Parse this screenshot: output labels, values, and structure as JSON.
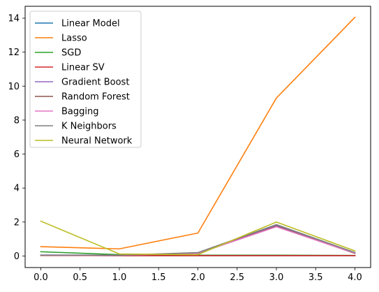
{
  "chart_data": {
    "type": "line",
    "title": "",
    "xlabel": "",
    "ylabel": "",
    "x": [
      0,
      1,
      2,
      3,
      4
    ],
    "xlim": [
      -0.2,
      4.2
    ],
    "ylim": [
      -0.68,
      14.7
    ],
    "xticks": [
      0.0,
      0.5,
      1.0,
      1.5,
      2.0,
      2.5,
      3.0,
      3.5,
      4.0
    ],
    "xtick_labels": [
      "0.0",
      "0.5",
      "1.0",
      "1.5",
      "2.0",
      "2.5",
      "3.0",
      "3.5",
      "4.0"
    ],
    "yticks": [
      0,
      2,
      4,
      6,
      8,
      10,
      12,
      14
    ],
    "ytick_labels": [
      "0",
      "2",
      "4",
      "6",
      "8",
      "10",
      "12",
      "14"
    ],
    "grid": false,
    "legend_position": "top-left",
    "series": [
      {
        "name": "Linear Model",
        "color": "#1f77b4",
        "values": [
          0.05,
          0.02,
          0.02,
          0.02,
          0.02
        ]
      },
      {
        "name": "Lasso",
        "color": "#ff7f0e",
        "values": [
          0.55,
          0.42,
          1.35,
          9.3,
          14.05
        ]
      },
      {
        "name": "SGD",
        "color": "#2ca02c",
        "values": [
          0.25,
          0.08,
          0.05,
          0.05,
          0.03
        ]
      },
      {
        "name": "Linear SV",
        "color": "#d62728",
        "values": [
          0.03,
          0.02,
          0.02,
          0.02,
          0.02
        ]
      },
      {
        "name": "Gradient Boost",
        "color": "#9467bd",
        "values": [
          0.06,
          0.05,
          0.18,
          1.8,
          0.18
        ]
      },
      {
        "name": "Random Forest",
        "color": "#8c564b",
        "values": [
          0.04,
          0.04,
          0.15,
          1.75,
          0.15
        ]
      },
      {
        "name": "Bagging",
        "color": "#e377c2",
        "values": [
          0.05,
          0.04,
          0.16,
          1.72,
          0.16
        ]
      },
      {
        "name": "K Neighbors",
        "color": "#7f7f7f",
        "values": [
          0.05,
          0.05,
          0.2,
          1.85,
          0.2
        ]
      },
      {
        "name": "Neural Network",
        "color": "#bcbd22",
        "values": [
          2.05,
          0.12,
          0.08,
          2.0,
          0.3
        ]
      }
    ]
  }
}
